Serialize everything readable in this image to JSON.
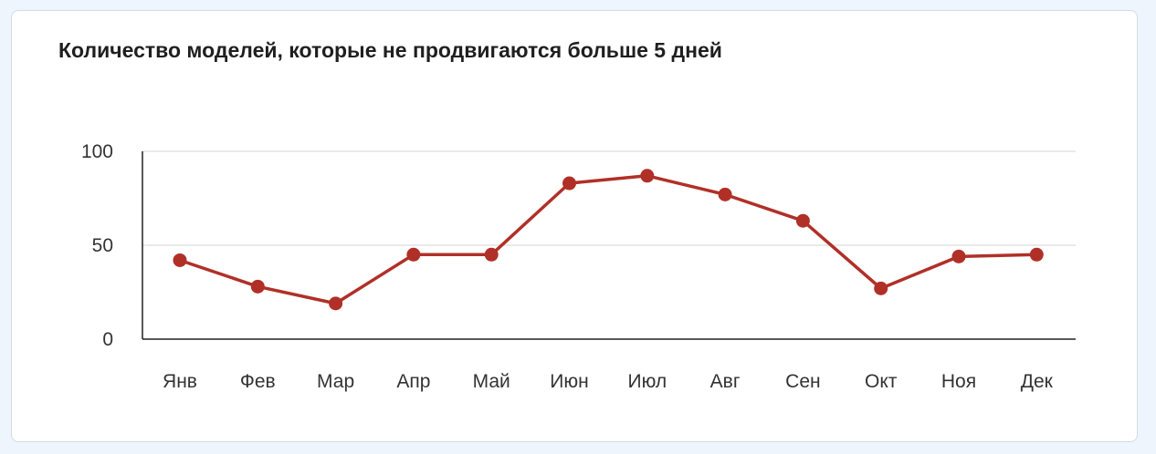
{
  "card": {
    "title": "Количество моделей, которые не продвигаются больше 5 дней"
  },
  "chart_data": {
    "type": "line",
    "title": "Количество моделей, которые не продвигаются больше 5 дней",
    "xlabel": "",
    "ylabel": "",
    "categories": [
      "Янв",
      "Фев",
      "Мар",
      "Апр",
      "Май",
      "Июн",
      "Июл",
      "Авг",
      "Сен",
      "Окт",
      "Ноя",
      "Дек"
    ],
    "series": [
      {
        "values": [
          42,
          28,
          19,
          45,
          45,
          83,
          87,
          77,
          63,
          27,
          44,
          45
        ],
        "color": "#b03028"
      }
    ],
    "ylim": [
      0,
      100
    ],
    "yticks": [
      "0",
      "50",
      "100"
    ],
    "grid": true,
    "legend": "none"
  }
}
